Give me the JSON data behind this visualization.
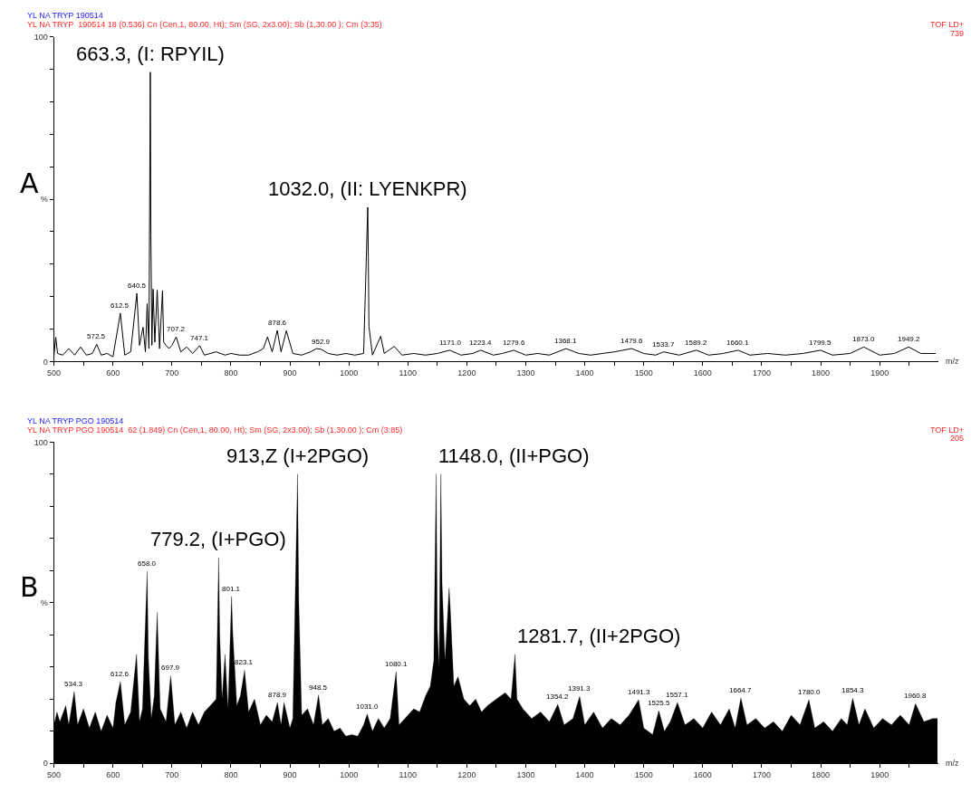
{
  "chart_data": [
    {
      "type": "line",
      "title": "YL NA TRYP 190514",
      "subtitle": "YL NA TRYP  190514 18 (0.536) Cn (Cen,1, 80.00, Ht); Sm (SG, 2x3.00); Sb (1,30.00 ); Cm (3:35)",
      "xlabel": "m/z",
      "xlim": [
        500,
        2000
      ],
      "xticks": [
        500,
        {
          "value": 550,
          "label": null
        },
        600,
        {
          "value": 650,
          "label": null
        },
        700,
        {
          "value": 750,
          "label": null
        },
        800,
        {
          "value": 850,
          "label": null
        },
        900,
        {
          "value": 950,
          "label": null
        },
        1000,
        {
          "value": 1050,
          "label": null
        },
        1100,
        {
          "value": 1150,
          "label": null
        },
        1200,
        {
          "value": 1250,
          "label": null
        },
        1300,
        {
          "value": 1350,
          "label": null
        },
        1400,
        {
          "value": 1450,
          "label": null
        },
        1500,
        {
          "value": 1550,
          "label": null
        },
        1600,
        {
          "value": 1650,
          "label": null
        },
        1700,
        {
          "value": 1750,
          "label": null
        },
        1800,
        {
          "value": 1850,
          "label": null
        },
        1900,
        {
          "value": 1950,
          "label": null
        }
      ],
      "ylim": [
        0,
        100
      ],
      "yticks": [
        0,
        {
          "value": 10,
          "label": null
        },
        {
          "value": 20,
          "label": null
        },
        {
          "value": 30,
          "label": null
        },
        {
          "value": 40,
          "label": null
        },
        {
          "value": 50,
          "label": "%"
        },
        {
          "value": 60,
          "label": null
        },
        {
          "value": 70,
          "label": null
        },
        {
          "value": 80,
          "label": null
        },
        {
          "value": 90,
          "label": null
        },
        100
      ],
      "series": [
        {
          "color": "#000000",
          "x": [
            500,
            503,
            506,
            515,
            525,
            535,
            545,
            555,
            565,
            572.5,
            580,
            590,
            600,
            612.5,
            620,
            630,
            640.5,
            645,
            651,
            655,
            658,
            661,
            663.3,
            664.3,
            666,
            668,
            671,
            675,
            679,
            684,
            686,
            690,
            695,
            700,
            707.2,
            715,
            725,
            735,
            747.1,
            755,
            765,
            775,
            790,
            800,
            815,
            830,
            845,
            855,
            862,
            870,
            878.6,
            885,
            894,
            905,
            920,
            935,
            945,
            952.9,
            965,
            980,
            995,
            1010,
            1025,
            1032,
            1033,
            1034,
            1040,
            1054,
            1060,
            1077,
            1090,
            1110,
            1130,
            1150,
            1171,
            1190,
            1210,
            1223.4,
            1245,
            1260,
            1279.6,
            1300,
            1320,
            1340,
            1368.1,
            1390,
            1410,
            1430,
            1450,
            1479.6,
            1500,
            1520,
            1533.7,
            1560,
            1589.2,
            1610,
            1635,
            1660.1,
            1680,
            1710,
            1740,
            1770,
            1799.5,
            1820,
            1850,
            1873,
            1900,
            1925,
            1949.2,
            1970,
            1995
          ],
          "values": [
            2,
            7.5,
            2.5,
            2,
            4,
            2,
            4.5,
            2,
            2.5,
            5.3,
            2,
            2.5,
            1.5,
            14.9,
            2,
            3,
            21,
            5,
            10.6,
            3,
            17.8,
            4,
            89.1,
            39,
            5,
            22.3,
            6,
            22,
            4,
            21.8,
            6,
            5,
            4,
            5,
            7.6,
            3,
            4.5,
            2.5,
            4.9,
            2,
            2.5,
            3,
            2,
            2.5,
            2,
            2,
            3,
            4,
            7.6,
            3,
            9.6,
            3,
            9.5,
            2.5,
            2,
            3,
            4,
            3.8,
            2.5,
            2,
            2.5,
            2,
            2.5,
            47.5,
            32,
            10.9,
            2,
            7.8,
            2.5,
            4.7,
            2,
            2.5,
            2,
            2.5,
            3.5,
            2,
            2.5,
            3.5,
            2,
            2.5,
            3.5,
            2,
            2.5,
            2,
            4,
            2.5,
            2,
            2.5,
            3,
            4,
            2.5,
            2,
            3,
            2,
            3.5,
            2,
            2.5,
            3.5,
            2,
            2.5,
            2,
            2.5,
            3.5,
            2,
            2.5,
            4.5,
            2,
            2.5,
            4.5,
            2.5,
            2.5
          ]
        }
      ],
      "annotations": [
        "A",
        "TOF LD+",
        "739",
        {
          "text": "663.3, (I: RPYIL)",
          "x": 663.3,
          "y": 89.1
        },
        {
          "text": "1032.0, (II: LYENKPR)",
          "x": 1032,
          "y": 47.5
        },
        {
          "text": "572.5",
          "x": 572.5,
          "y": 5.3
        },
        {
          "text": "612.5",
          "x": 612.5,
          "y": 14.9
        },
        {
          "text": "640.5",
          "x": 640.5,
          "y": 21
        },
        {
          "text": "707.2",
          "x": 707.2,
          "y": 7.6
        },
        {
          "text": "747.1",
          "x": 747.1,
          "y": 4.9
        },
        {
          "text": "878.6",
          "x": 878.6,
          "y": 9.6
        },
        {
          "text": "952.9",
          "x": 952.9,
          "y": 3.8
        },
        {
          "text": "1171.0",
          "x": 1171,
          "y": 3.5
        },
        {
          "text": "1223.4",
          "x": 1223.4,
          "y": 3.5
        },
        {
          "text": "1279.6",
          "x": 1279.6,
          "y": 3.5
        },
        {
          "text": "1368.1",
          "x": 1368.1,
          "y": 4
        },
        {
          "text": "1479.6",
          "x": 1479.6,
          "y": 4
        },
        {
          "text": "1533.7",
          "x": 1533.7,
          "y": 3
        },
        {
          "text": "1589.2",
          "x": 1589.2,
          "y": 3.5
        },
        {
          "text": "1660.1",
          "x": 1660.1,
          "y": 3.5
        },
        {
          "text": "1799.5",
          "x": 1799.5,
          "y": 3.5
        },
        {
          "text": "1873.0",
          "x": 1873,
          "y": 4.5
        },
        {
          "text": "1949.2",
          "x": 1949.2,
          "y": 4.5
        }
      ]
    },
    {
      "type": "area",
      "title": "YL NA TRYP PGO 190514",
      "subtitle": "YL NA TRYP PGO 190514  62 (1.849) Cn (Cen,1, 80.00, Ht); Sm (SG, 2x3.00); Sb (1,30.00 ); Cm (3:85)",
      "xlabel": "m/z",
      "xlim": [
        500,
        2000
      ],
      "xticks": [
        500,
        {
          "value": 550,
          "label": null
        },
        600,
        {
          "value": 650,
          "label": null
        },
        700,
        {
          "value": 750,
          "label": null
        },
        800,
        {
          "value": 850,
          "label": null
        },
        900,
        {
          "value": 950,
          "label": null
        },
        1000,
        {
          "value": 1050,
          "label": null
        },
        1100,
        {
          "value": 1150,
          "label": null
        },
        1200,
        {
          "value": 1250,
          "label": null
        },
        1300,
        {
          "value": 1350,
          "label": null
        },
        1400,
        {
          "value": 1450,
          "label": null
        },
        1500,
        {
          "value": 1550,
          "label": null
        },
        1600,
        {
          "value": 1650,
          "label": null
        },
        1700,
        {
          "value": 1750,
          "label": null
        },
        1800,
        {
          "value": 1850,
          "label": null
        },
        1900,
        {
          "value": 1950,
          "label": null
        }
      ],
      "ylim": [
        0,
        100
      ],
      "yticks": [
        0,
        {
          "value": 10,
          "label": null
        },
        {
          "value": 20,
          "label": null
        },
        {
          "value": 30,
          "label": null
        },
        {
          "value": 40,
          "label": null
        },
        {
          "value": 50,
          "label": "%"
        },
        {
          "value": 60,
          "label": null
        },
        {
          "value": 70,
          "label": null
        },
        {
          "value": 80,
          "label": null
        },
        {
          "value": 90,
          "label": null
        },
        100
      ],
      "series": [
        {
          "color": "#000000",
          "x": [
            500,
            505,
            510,
            520,
            525,
            534.3,
            540,
            550,
            560,
            570,
            580,
            590,
            600,
            605,
            612.6,
            620,
            630,
            640,
            645,
            650,
            658,
            660,
            665,
            670,
            675,
            680,
            690,
            697.9,
            705,
            715,
            725,
            735,
            745,
            755,
            765,
            775,
            779.2,
            781,
            785,
            790,
            795,
            801.1,
            803,
            810,
            816,
            823.1,
            830,
            840,
            850,
            860,
            870,
            878.9,
            885,
            890,
            900,
            905,
            913,
            915,
            920,
            930,
            940,
            948.5,
            955,
            965,
            975,
            985,
            995,
            1005,
            1015,
            1025,
            1031,
            1040,
            1050,
            1060,
            1070,
            1080.1,
            1085,
            1095,
            1110,
            1120,
            1130,
            1138,
            1144,
            1148,
            1150,
            1153,
            1156,
            1158,
            1163,
            1170,
            1172,
            1178,
            1185,
            1195,
            1205,
            1215,
            1225,
            1235,
            1250,
            1265,
            1275,
            1281.7,
            1285,
            1295,
            1310,
            1325,
            1340,
            1354.2,
            1365,
            1380,
            1391.3,
            1400,
            1415,
            1430,
            1445,
            1460,
            1475,
            1491.3,
            1500,
            1515,
            1525.5,
            1535,
            1545,
            1557.1,
            1570,
            1585,
            1600,
            1615,
            1630,
            1645,
            1655,
            1664.7,
            1675,
            1690,
            1705,
            1720,
            1735,
            1750,
            1765,
            1780,
            1790,
            1805,
            1820,
            1835,
            1845,
            1854.3,
            1865,
            1875,
            1890,
            1905,
            1920,
            1935,
            1950,
            1960.8,
            1975,
            1990,
            1998
          ],
          "values": [
            12,
            16,
            13,
            18,
            12,
            22.4,
            12,
            17,
            11,
            16,
            10,
            15,
            11,
            19,
            25.5,
            12,
            16,
            34,
            13,
            17,
            59.8,
            33,
            14,
            21,
            47,
            17,
            13,
            27.3,
            12,
            16,
            11,
            16,
            12,
            16,
            18,
            20,
            64.1,
            40,
            20,
            34,
            17,
            52,
            41,
            18,
            21,
            29,
            16,
            20,
            12,
            15,
            13,
            19,
            12,
            19,
            11,
            14,
            90.1,
            50.8,
            15,
            17,
            12,
            21.3,
            12,
            14,
            10,
            11,
            8.5,
            9,
            8.5,
            12,
            15.4,
            10,
            14,
            11,
            14,
            28.6,
            12,
            14,
            17,
            16,
            21,
            24,
            32,
            90.1,
            42,
            30,
            90.1,
            56,
            32,
            54.6,
            48,
            24,
            27,
            20,
            18,
            20,
            16,
            18,
            20,
            22,
            20,
            34,
            20,
            17,
            14,
            16,
            13,
            18.4,
            12,
            14,
            20.9,
            12,
            16,
            11,
            14,
            12,
            15,
            19.8,
            11,
            9,
            16.4,
            10,
            13,
            19,
            12,
            14,
            11,
            16,
            12,
            17,
            11,
            20.4,
            12,
            14,
            11,
            13,
            10,
            15,
            12,
            19.8,
            11,
            13,
            10,
            14,
            12,
            20.3,
            12,
            17,
            11,
            14,
            12,
            15,
            12,
            18.6,
            13,
            14,
            14
          ]
        }
      ],
      "annotations": [
        "B",
        "TOF LD+",
        "205",
        {
          "text": "779.2, (I+PGO)",
          "x": 779.2,
          "y": 64.1
        },
        {
          "text": "913,Z (I+2PGO)",
          "x": 913,
          "y": 90.1
        },
        {
          "text": "1148.0, (II+PGO)",
          "x": 1148,
          "y": 90.1
        },
        {
          "text": "1281.7, (II+2PGO)",
          "x": 1281.7,
          "y": 34
        },
        {
          "text": "534.3",
          "x": 534.3,
          "y": 22.4
        },
        {
          "text": "612.6",
          "x": 612.6,
          "y": 25.5
        },
        {
          "text": "658.0",
          "x": 658,
          "y": 59.8
        },
        {
          "text": "697.9",
          "x": 697.9,
          "y": 27.3
        },
        {
          "text": "801.1",
          "x": 801.1,
          "y": 52
        },
        {
          "text": "823.1",
          "x": 823.1,
          "y": 29
        },
        {
          "text": "878.9",
          "x": 878.9,
          "y": 19
        },
        {
          "text": "948.5",
          "x": 948.5,
          "y": 21.3
        },
        {
          "text": "1031.0",
          "x": 1031,
          "y": 15.4
        },
        {
          "text": "1080.1",
          "x": 1080.1,
          "y": 28.6
        },
        {
          "text": "1354.2",
          "x": 1354.2,
          "y": 18.4
        },
        {
          "text": "1391.3",
          "x": 1391.3,
          "y": 20.9
        },
        {
          "text": "1491.3",
          "x": 1491.3,
          "y": 19.8
        },
        {
          "text": "1525.5",
          "x": 1525.5,
          "y": 16.4
        },
        {
          "text": "1557.1",
          "x": 1557.1,
          "y": 19
        },
        {
          "text": "1664.7",
          "x": 1664.7,
          "y": 20.4
        },
        {
          "text": "1780.0",
          "x": 1780,
          "y": 19.8
        },
        {
          "text": "1854.3",
          "x": 1854.3,
          "y": 20.3
        },
        {
          "text": "1960.8",
          "x": 1960.8,
          "y": 18.6
        }
      ]
    }
  ]
}
